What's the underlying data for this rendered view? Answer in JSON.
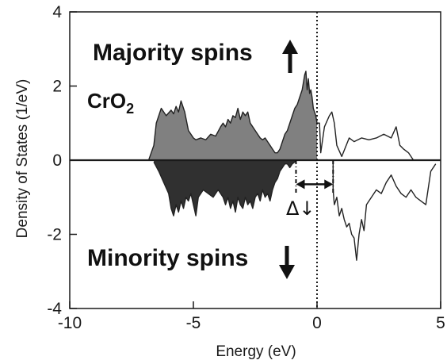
{
  "chart_data": {
    "type": "area",
    "title": "",
    "xlabel": "Energy (eV)",
    "ylabel": "Density of States (1/eV)",
    "xlim": [
      -10,
      5
    ],
    "ylim": [
      -4,
      4
    ],
    "xticks": [
      "-10",
      "-5",
      "0",
      "5"
    ],
    "yticks": [
      "-4",
      "-2",
      "0",
      "2",
      "4"
    ],
    "annotations": {
      "majority": "Majority spins",
      "minority": "Minority spins",
      "compound_base": "CrO",
      "compound_sub": "2",
      "gap_symbol": "Δ↓"
    },
    "fermi_level": 0,
    "minority_gap": [
      -0.85,
      0.65
    ],
    "series": [
      {
        "spin": "up",
        "fill_below_fermi": "#808080",
        "x": [
          -6.8,
          -6.6,
          -6.5,
          -6.3,
          -6.1,
          -5.9,
          -5.8,
          -5.7,
          -5.6,
          -5.5,
          -5.45,
          -5.35,
          -5.2,
          -5.1,
          -5.0,
          -4.9,
          -4.7,
          -4.5,
          -4.3,
          -4.1,
          -3.9,
          -3.8,
          -3.7,
          -3.6,
          -3.5,
          -3.4,
          -3.3,
          -3.2,
          -3.1,
          -3.0,
          -2.9,
          -2.8,
          -2.7,
          -2.6,
          -2.5,
          -2.4,
          -2.3,
          -2.2,
          -2.1,
          -2.0,
          -1.9,
          -1.8,
          -1.7,
          -1.6,
          -1.5,
          -1.4,
          -1.3,
          -1.2,
          -1.1,
          -1.0,
          -0.9,
          -0.8,
          -0.7,
          -0.6,
          -0.5,
          -0.45,
          -0.4,
          -0.35,
          -0.3,
          -0.25,
          -0.2,
          -0.15,
          -0.05,
          0.0,
          0.1,
          0.15,
          0.3,
          0.5,
          0.6,
          0.7,
          0.8,
          1.0,
          1.3,
          1.5,
          1.8,
          2.1,
          2.4,
          2.7,
          3.0,
          3.2,
          3.35,
          3.5,
          3.7,
          3.9
        ],
        "y": [
          0.02,
          0.4,
          1.0,
          1.4,
          1.2,
          1.35,
          1.25,
          1.45,
          1.3,
          1.6,
          1.5,
          1.3,
          0.8,
          0.7,
          0.6,
          0.55,
          0.6,
          0.55,
          0.7,
          0.65,
          0.9,
          1.0,
          0.9,
          1.1,
          1.0,
          1.2,
          1.15,
          1.4,
          1.1,
          1.3,
          1.2,
          1.3,
          1.0,
          0.9,
          0.8,
          0.7,
          0.6,
          0.55,
          0.6,
          0.5,
          0.4,
          0.3,
          0.2,
          0.2,
          0.3,
          0.5,
          0.7,
          0.8,
          1.0,
          1.2,
          1.4,
          1.5,
          1.7,
          1.9,
          2.3,
          2.4,
          1.9,
          2.2,
          1.8,
          1.9,
          1.7,
          1.4,
          1.2,
          1.0,
          1.0,
          0.2,
          0.9,
          1.2,
          1.3,
          1.0,
          0.4,
          0.1,
          0.6,
          0.5,
          0.6,
          0.55,
          0.6,
          0.7,
          0.6,
          0.9,
          0.4,
          0.3,
          0.2,
          0.0
        ]
      },
      {
        "spin": "down",
        "fill_below_fermi": "#303030",
        "x": [
          -6.6,
          -6.4,
          -6.2,
          -6.0,
          -5.9,
          -5.8,
          -5.7,
          -5.6,
          -5.5,
          -5.4,
          -5.3,
          -5.2,
          -5.1,
          -5.0,
          -4.9,
          -4.8,
          -4.6,
          -4.4,
          -4.2,
          -4.0,
          -3.8,
          -3.7,
          -3.6,
          -3.5,
          -3.4,
          -3.3,
          -3.2,
          -3.1,
          -3.0,
          -2.9,
          -2.8,
          -2.7,
          -2.6,
          -2.5,
          -2.4,
          -2.3,
          -2.2,
          -2.1,
          -2.0,
          -1.9,
          -1.8,
          -1.7,
          -1.6,
          -1.5,
          -1.4,
          -1.3,
          -1.2,
          -1.1,
          -1.0,
          -0.9,
          -0.85,
          0.65,
          0.7,
          0.8,
          0.9,
          1.0,
          1.1,
          1.2,
          1.3,
          1.4,
          1.5,
          1.6,
          1.7,
          1.8,
          1.9,
          2.0,
          2.2,
          2.4,
          2.6,
          2.8,
          3.0,
          3.2,
          3.4,
          3.6,
          3.8,
          4.0,
          4.2,
          4.4,
          4.6,
          4.8
        ],
        "y": [
          -0.05,
          -0.3,
          -0.6,
          -0.9,
          -1.3,
          -1.5,
          -1.2,
          -1.4,
          -1.1,
          -1.3,
          -1.0,
          -1.1,
          -0.9,
          -1.2,
          -1.5,
          -1.0,
          -0.8,
          -0.9,
          -1.0,
          -0.8,
          -1.0,
          -1.2,
          -1.0,
          -1.3,
          -1.1,
          -1.4,
          -1.0,
          -1.2,
          -1.3,
          -1.0,
          -1.2,
          -1.1,
          -1.3,
          -1.0,
          -0.9,
          -1.1,
          -0.8,
          -1.0,
          -0.9,
          -1.1,
          -0.8,
          -0.6,
          -0.5,
          -0.3,
          -0.2,
          -0.1,
          -0.1,
          -0.2,
          -0.1,
          -0.05,
          0.0,
          -0.8,
          -1.2,
          -1.0,
          -1.5,
          -1.3,
          -1.6,
          -1.8,
          -1.7,
          -2.0,
          -2.1,
          -2.7,
          -2.0,
          -1.6,
          -1.9,
          -1.2,
          -1.0,
          -0.8,
          -0.9,
          -0.6,
          -0.4,
          -0.7,
          -0.9,
          -1.0,
          -0.8,
          -1.0,
          -1.1,
          -1.2,
          -0.3,
          -0.1
        ]
      }
    ],
    "colors": {
      "axis": "#1a1a1a",
      "line": "#222222",
      "fermi": "#1a1a1a"
    }
  }
}
